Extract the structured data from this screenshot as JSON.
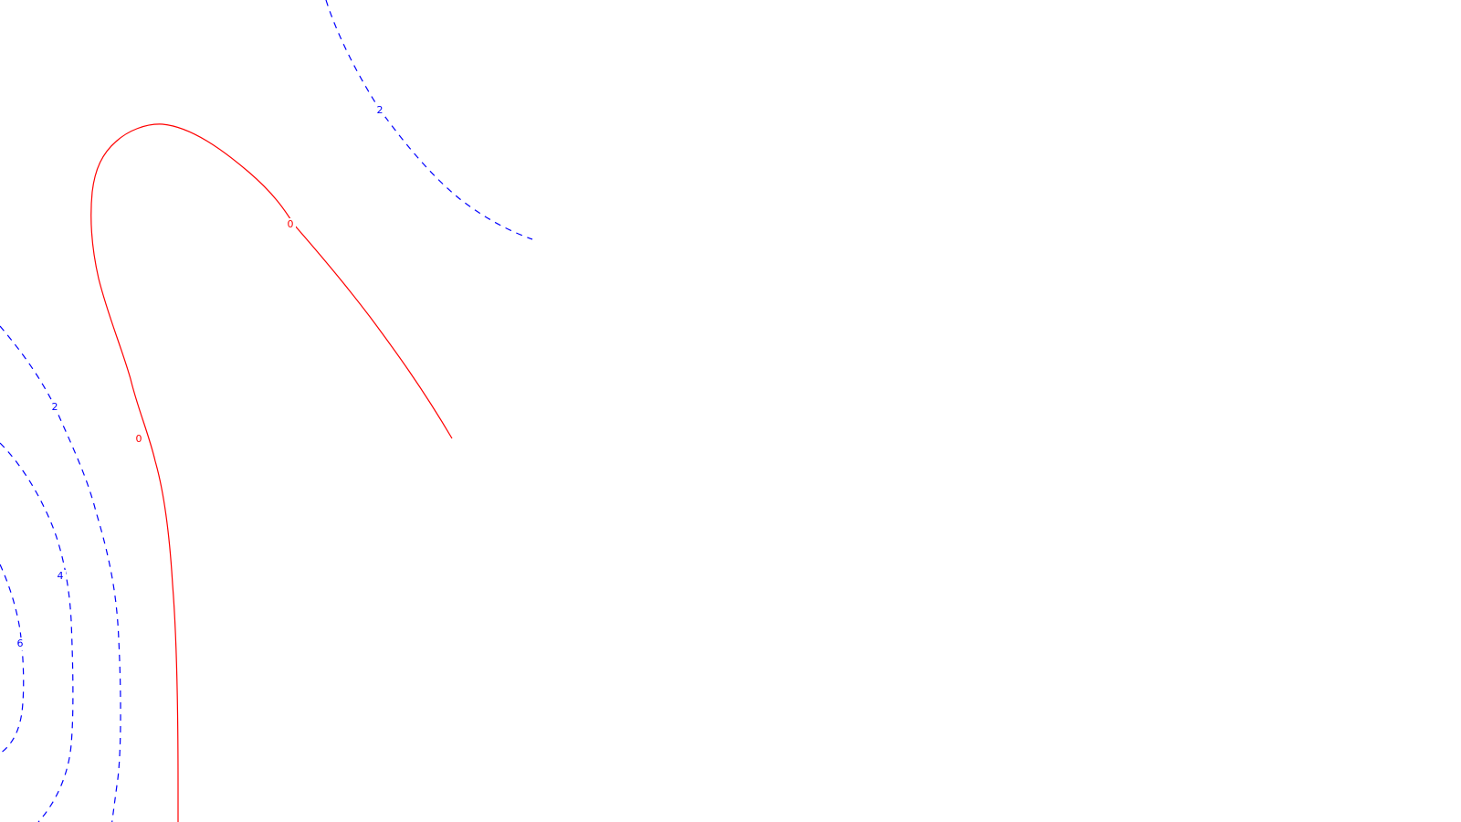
{
  "chart_data": {
    "type": "contour",
    "title": "",
    "xlabel": "",
    "ylabel": "",
    "grid": false,
    "legend": "none",
    "colors": {
      "positive": "#0000ff",
      "zero": "#ff0000"
    },
    "styles": {
      "positive": "dashed",
      "zero": "solid"
    },
    "levels": [
      {
        "id": "zero-main",
        "value": "0",
        "sign": "zero",
        "label_count": 2
      },
      {
        "id": "pos2-top",
        "value": "2",
        "sign": "positive",
        "label_count": 1
      },
      {
        "id": "pos2-left",
        "value": "2",
        "sign": "positive",
        "label_count": 1
      },
      {
        "id": "pos4-left",
        "value": "4",
        "sign": "positive",
        "label_count": 1
      },
      {
        "id": "pos6-left",
        "value": "6",
        "sign": "positive",
        "label_count": 1
      }
    ]
  }
}
